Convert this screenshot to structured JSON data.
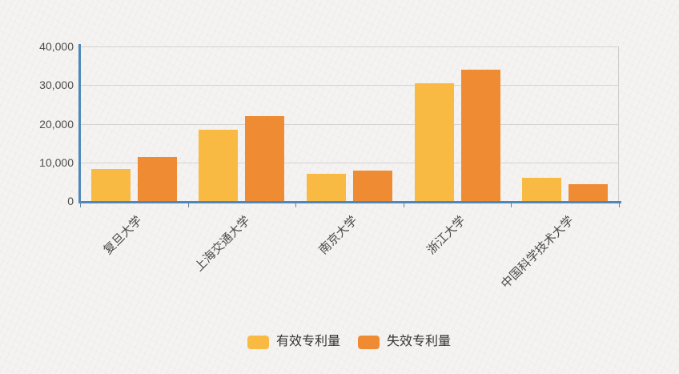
{
  "chart_data": {
    "type": "bar",
    "title": "",
    "xlabel": "",
    "ylabel": "",
    "categories": [
      "复旦大学",
      "上海交通大学",
      "南京大学",
      "浙江大学",
      "中国科学技术大学"
    ],
    "series": [
      {
        "name": "有效专利量",
        "color": "#f8ba42",
        "values": [
          8200,
          18500,
          7100,
          30400,
          6000
        ]
      },
      {
        "name": "失效专利量",
        "color": "#ef8b33",
        "values": [
          11500,
          22000,
          7800,
          34000,
          4400
        ]
      }
    ],
    "ylim": [
      0,
      40000
    ],
    "ytick_interval": 10000,
    "ytick_labels": [
      "0",
      "10,000",
      "20,000",
      "30,000",
      "40,000"
    ],
    "grid": true,
    "legend_position": "bottom",
    "colors": {
      "axis": "#4e87b8",
      "gridline": "#d3d3d1",
      "tick": "#6f8499",
      "axis_label": "#4d4d4d",
      "legend_text": "#333333",
      "background": "#f4f3f1"
    }
  }
}
